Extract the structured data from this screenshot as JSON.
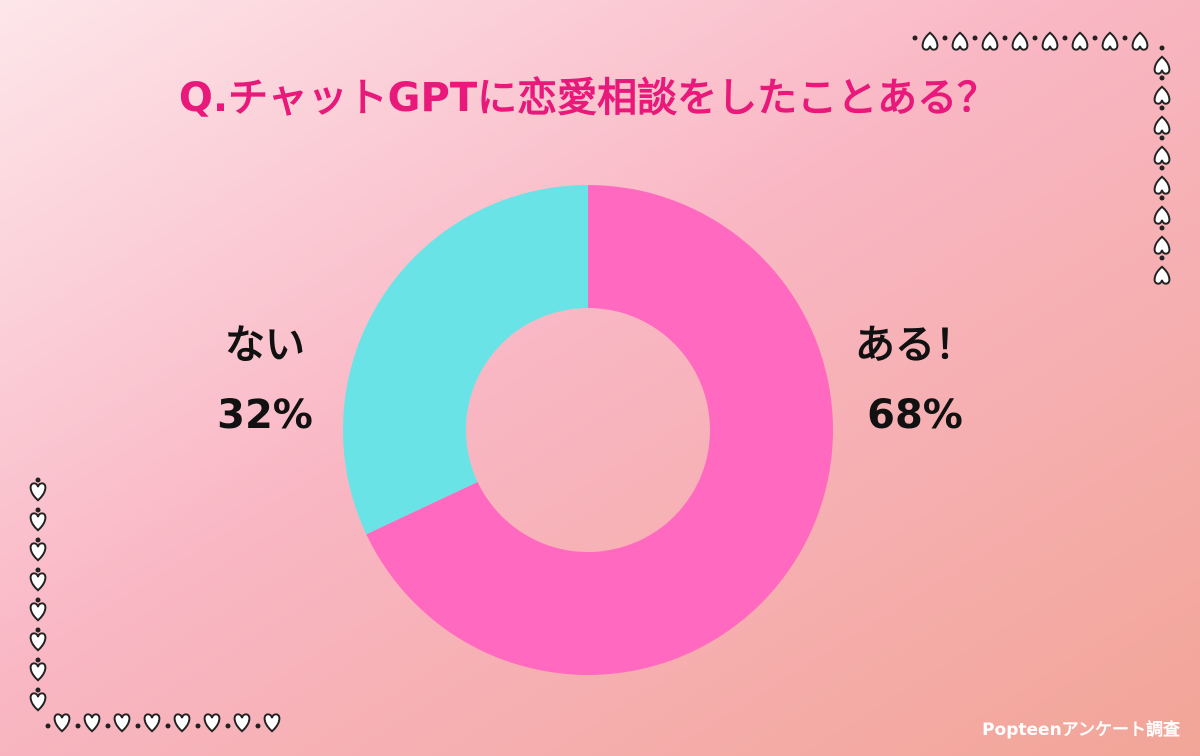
{
  "chart_data": {
    "type": "donut",
    "title": "Q.チャットGPTに恋愛相談をしたことある？",
    "categories": [
      "ある！",
      "ない"
    ],
    "values": [
      68,
      32
    ],
    "value_labels": [
      "68%",
      "32%"
    ],
    "colors": [
      "#ff69c0",
      "#6ae3e6"
    ],
    "source": "Popteenアンケート調査"
  }
}
